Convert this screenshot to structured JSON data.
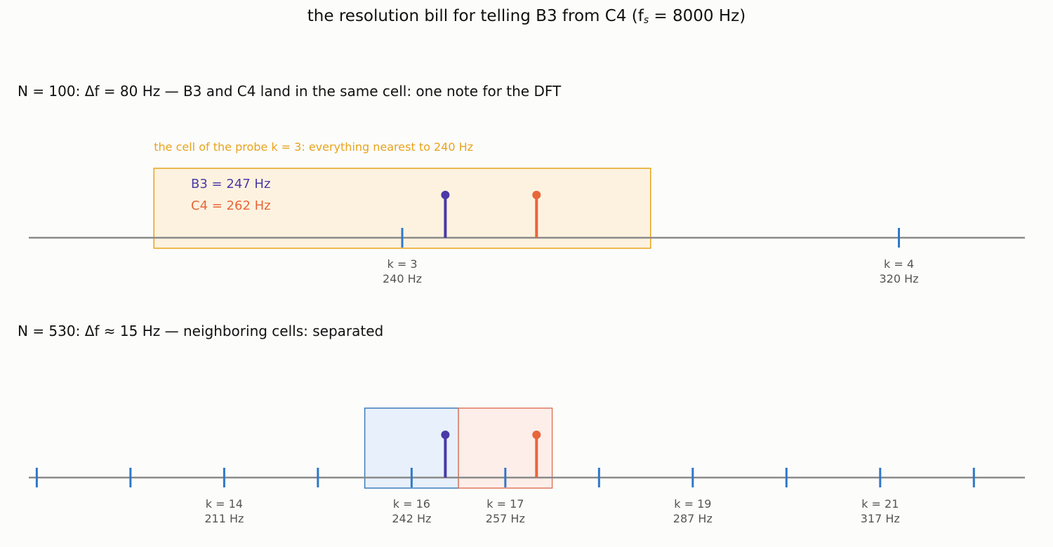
{
  "title": {
    "prefix": "the resolution bill for telling B3 from C4  (f",
    "sub": "s",
    "suffix": " = 8000 Hz)"
  },
  "panel_coarse": {
    "heading": "N = 100:  Δf = 80 Hz — B3 and C4 land in the same cell:  one note for the DFT",
    "cell_note": "the cell of the probe k = 3: everything nearest to 240 Hz",
    "b3_label": "B3 = 247 Hz",
    "c4_label": "C4 = 262 Hz",
    "ticks": [
      {
        "k": 3,
        "hz": 240,
        "label_k": "k = 3",
        "label_hz": "240 Hz"
      },
      {
        "k": 4,
        "hz": 320,
        "label_k": "k = 4",
        "label_hz": "320 Hz"
      }
    ]
  },
  "panel_fine": {
    "heading": "N = 530:  Δf ≈ 15 Hz — neighboring cells:  separated",
    "ticks": [
      {
        "k": 12,
        "label_k": "",
        "label_hz": ""
      },
      {
        "k": 13,
        "label_k": "",
        "label_hz": ""
      },
      {
        "k": 14,
        "label_k": "k = 14",
        "label_hz": "211 Hz"
      },
      {
        "k": 15,
        "label_k": "",
        "label_hz": ""
      },
      {
        "k": 16,
        "label_k": "k = 16",
        "label_hz": "242 Hz"
      },
      {
        "k": 17,
        "label_k": "k = 17",
        "label_hz": "257 Hz"
      },
      {
        "k": 18,
        "label_k": "",
        "label_hz": ""
      },
      {
        "k": 19,
        "label_k": "k = 19",
        "label_hz": "287 Hz"
      },
      {
        "k": 20,
        "label_k": "",
        "label_hz": ""
      },
      {
        "k": 21,
        "label_k": "k = 21",
        "label_hz": "317 Hz"
      },
      {
        "k": 22,
        "label_k": "",
        "label_hz": ""
      }
    ]
  },
  "notes": {
    "b3_hz": 246.94,
    "c4_hz": 261.63
  },
  "colors": {
    "b3": "#4a3aa6",
    "c4": "#e8663a",
    "tick": "#2f78c8",
    "axis": "#8a8a8a",
    "coarse_cell_fill": "#fdf2e0",
    "coarse_cell_stroke": "#e8a31c",
    "cell_note": "#e8a31c",
    "fine_cell_b3_fill": "#e8f0fb",
    "fine_cell_b3_stroke": "#3c7cbd",
    "fine_cell_c4_fill": "#fdeeea",
    "fine_cell_c4_stroke": "#e07a5f"
  }
}
